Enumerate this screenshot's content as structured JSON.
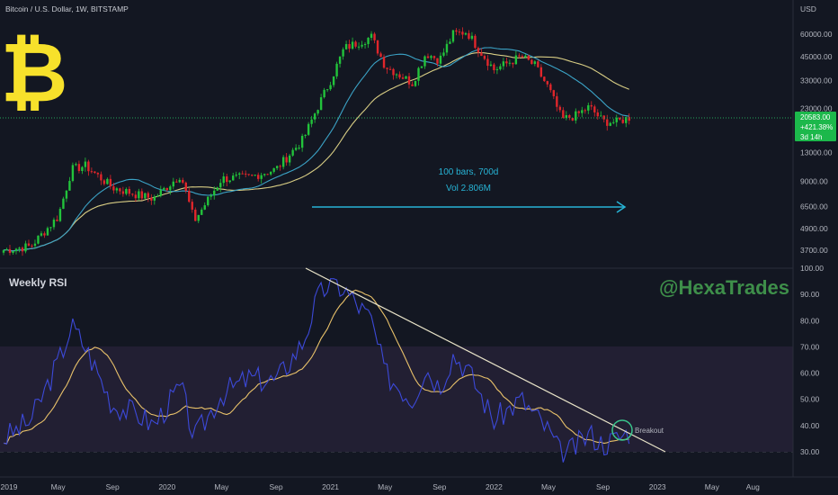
{
  "header": {
    "symbol": "Bitcoin / U.S. Dollar, 1W, BITSTAMP",
    "currency": "USD"
  },
  "watermark": "@HexaTrades",
  "price_panel": {
    "price_ticks": [
      "60000.00",
      "45000.00",
      "33000.00",
      "23000.00",
      "13000.00",
      "9000.00",
      "6500.00",
      "4900.00",
      "3700.00"
    ],
    "current_price": "20583.00",
    "change": "+421.38%",
    "countdown": "3d 14h",
    "measure_bars": "100 bars, 700d",
    "measure_vol": "Vol 2.806M"
  },
  "rsi_panel": {
    "title": "Weekly RSI",
    "ticks": [
      "100.00",
      "90.00",
      "80.00",
      "70.00",
      "60.00",
      "50.00",
      "40.00",
      "30.00"
    ],
    "breakout_label": "Breakout"
  },
  "x_axis": {
    "labels": [
      "2019",
      "May",
      "Sep",
      "2020",
      "May",
      "Sep",
      "2021",
      "May",
      "Sep",
      "2022",
      "May",
      "Sep",
      "2023",
      "May",
      "Aug"
    ]
  },
  "colors": {
    "up": "#26a69a",
    "up_bright": "#22c33b",
    "down": "#e0262b",
    "ma_fast": "#3ba3c6",
    "ma_slow": "#d8cd84",
    "rsi": "#3c49d8",
    "rsi_ma": "#e8c16a",
    "bitcoin_logo": "#f7e12b",
    "arrow": "#27b4d6",
    "breakout_circle": "#39c48b"
  },
  "chart_data": [
    {
      "type": "line",
      "title": "Bitcoin / U.S. Dollar, 1W, BITSTAMP",
      "scale": "log",
      "x": [
        "2019-01",
        "2019-03",
        "2019-05",
        "2019-06",
        "2019-07",
        "2019-09",
        "2019-11",
        "2019-12",
        "2020-02",
        "2020-03",
        "2020-05",
        "2020-07",
        "2020-09",
        "2020-11",
        "2020-12",
        "2021-01",
        "2021-02",
        "2021-04",
        "2021-05",
        "2021-07",
        "2021-08",
        "2021-09",
        "2021-10",
        "2021-11",
        "2021-12",
        "2022-01",
        "2022-03",
        "2022-04",
        "2022-05",
        "2022-06",
        "2022-07",
        "2022-08",
        "2022-09",
        "2022-10",
        "2022-11"
      ],
      "series": [
        {
          "values": [
            3700,
            3900,
            5700,
            10500,
            11000,
            8300,
            7500,
            7200,
            9800,
            5400,
            9300,
            9500,
            10500,
            15500,
            23000,
            33000,
            50000,
            58000,
            40000,
            32000,
            47000,
            43000,
            60000,
            62000,
            48000,
            38000,
            45000,
            40000,
            30000,
            20000,
            21000,
            23500,
            19500,
            19300,
            20583
          ]
        }
      ]
    },
    {
      "type": "line",
      "title": "Weekly RSI",
      "x": [
        "2019-01",
        "2019-03",
        "2019-05",
        "2019-06",
        "2019-07",
        "2019-09",
        "2019-11",
        "2019-12",
        "2020-02",
        "2020-03",
        "2020-05",
        "2020-07",
        "2020-09",
        "2020-11",
        "2020-12",
        "2021-01",
        "2021-02",
        "2021-04",
        "2021-05",
        "2021-07",
        "2021-08",
        "2021-09",
        "2021-10",
        "2021-11",
        "2021-12",
        "2022-01",
        "2022-03",
        "2022-04",
        "2022-05",
        "2022-06",
        "2022-07",
        "2022-08",
        "2022-09",
        "2022-10",
        "2022-11"
      ],
      "ylim": [
        25,
        100
      ],
      "series": [
        {
          "values": [
            35,
            42,
            64,
            78,
            70,
            48,
            44,
            40,
            55,
            35,
            52,
            58,
            57,
            72,
            88,
            95,
            92,
            80,
            60,
            50,
            62,
            55,
            67,
            62,
            52,
            42,
            50,
            44,
            38,
            28,
            32,
            37,
            33,
            35,
            38
          ]
        }
      ]
    }
  ]
}
